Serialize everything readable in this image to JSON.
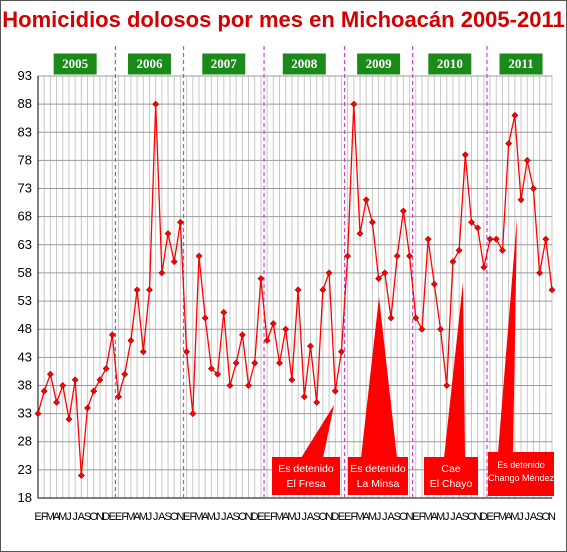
{
  "chart_data": {
    "type": "line",
    "title": "Homicidios dolosos por mes en Michoacán 2005-2011",
    "years": [
      "2005",
      "2006",
      "2007",
      "2008",
      "2009",
      "2010",
      "2011"
    ],
    "month_labels": [
      "E",
      "F",
      "M",
      "A",
      "M",
      "J",
      "J",
      "A",
      "S",
      "O",
      "N",
      "D"
    ],
    "y_ticks": [
      18,
      23,
      28,
      33,
      38,
      43,
      48,
      53,
      58,
      63,
      68,
      73,
      78,
      83,
      88,
      93
    ],
    "ylim": [
      18,
      93
    ],
    "grid": true,
    "colors": {
      "line": "#ff0000",
      "point": "#ff0000",
      "year_box": "#1a8a1a",
      "title": "#d40000",
      "annotation": "#ff0000",
      "separator": "#cc44cc"
    },
    "series": [
      {
        "values": [
          33,
          37,
          40,
          35,
          38,
          32,
          39,
          22,
          34,
          37,
          39,
          41,
          47,
          36,
          40,
          46,
          55,
          44,
          55,
          88,
          58,
          65,
          60,
          67,
          44,
          33,
          61,
          50,
          41,
          40,
          51,
          38,
          42,
          47,
          38,
          42,
          57,
          46,
          49,
          42,
          48,
          39,
          55,
          36,
          45,
          35,
          55,
          58,
          37,
          44,
          61,
          88,
          65,
          71,
          67,
          57,
          58,
          50,
          61,
          69,
          61,
          50,
          48,
          64,
          56,
          48,
          38,
          60,
          62,
          79,
          67,
          66,
          59,
          64,
          64,
          62,
          81,
          86,
          71,
          78,
          73,
          58,
          64,
          55
        ]
      }
    ],
    "annotations": [
      {
        "lines": [
          "Es detenido",
          "El Fresa"
        ]
      },
      {
        "lines": [
          "Es detenido",
          "La Minsa"
        ]
      },
      {
        "lines": [
          "Cae",
          "El Chayo"
        ]
      },
      {
        "lines": [
          "Es detenido",
          "Chango Méndez"
        ]
      }
    ]
  }
}
